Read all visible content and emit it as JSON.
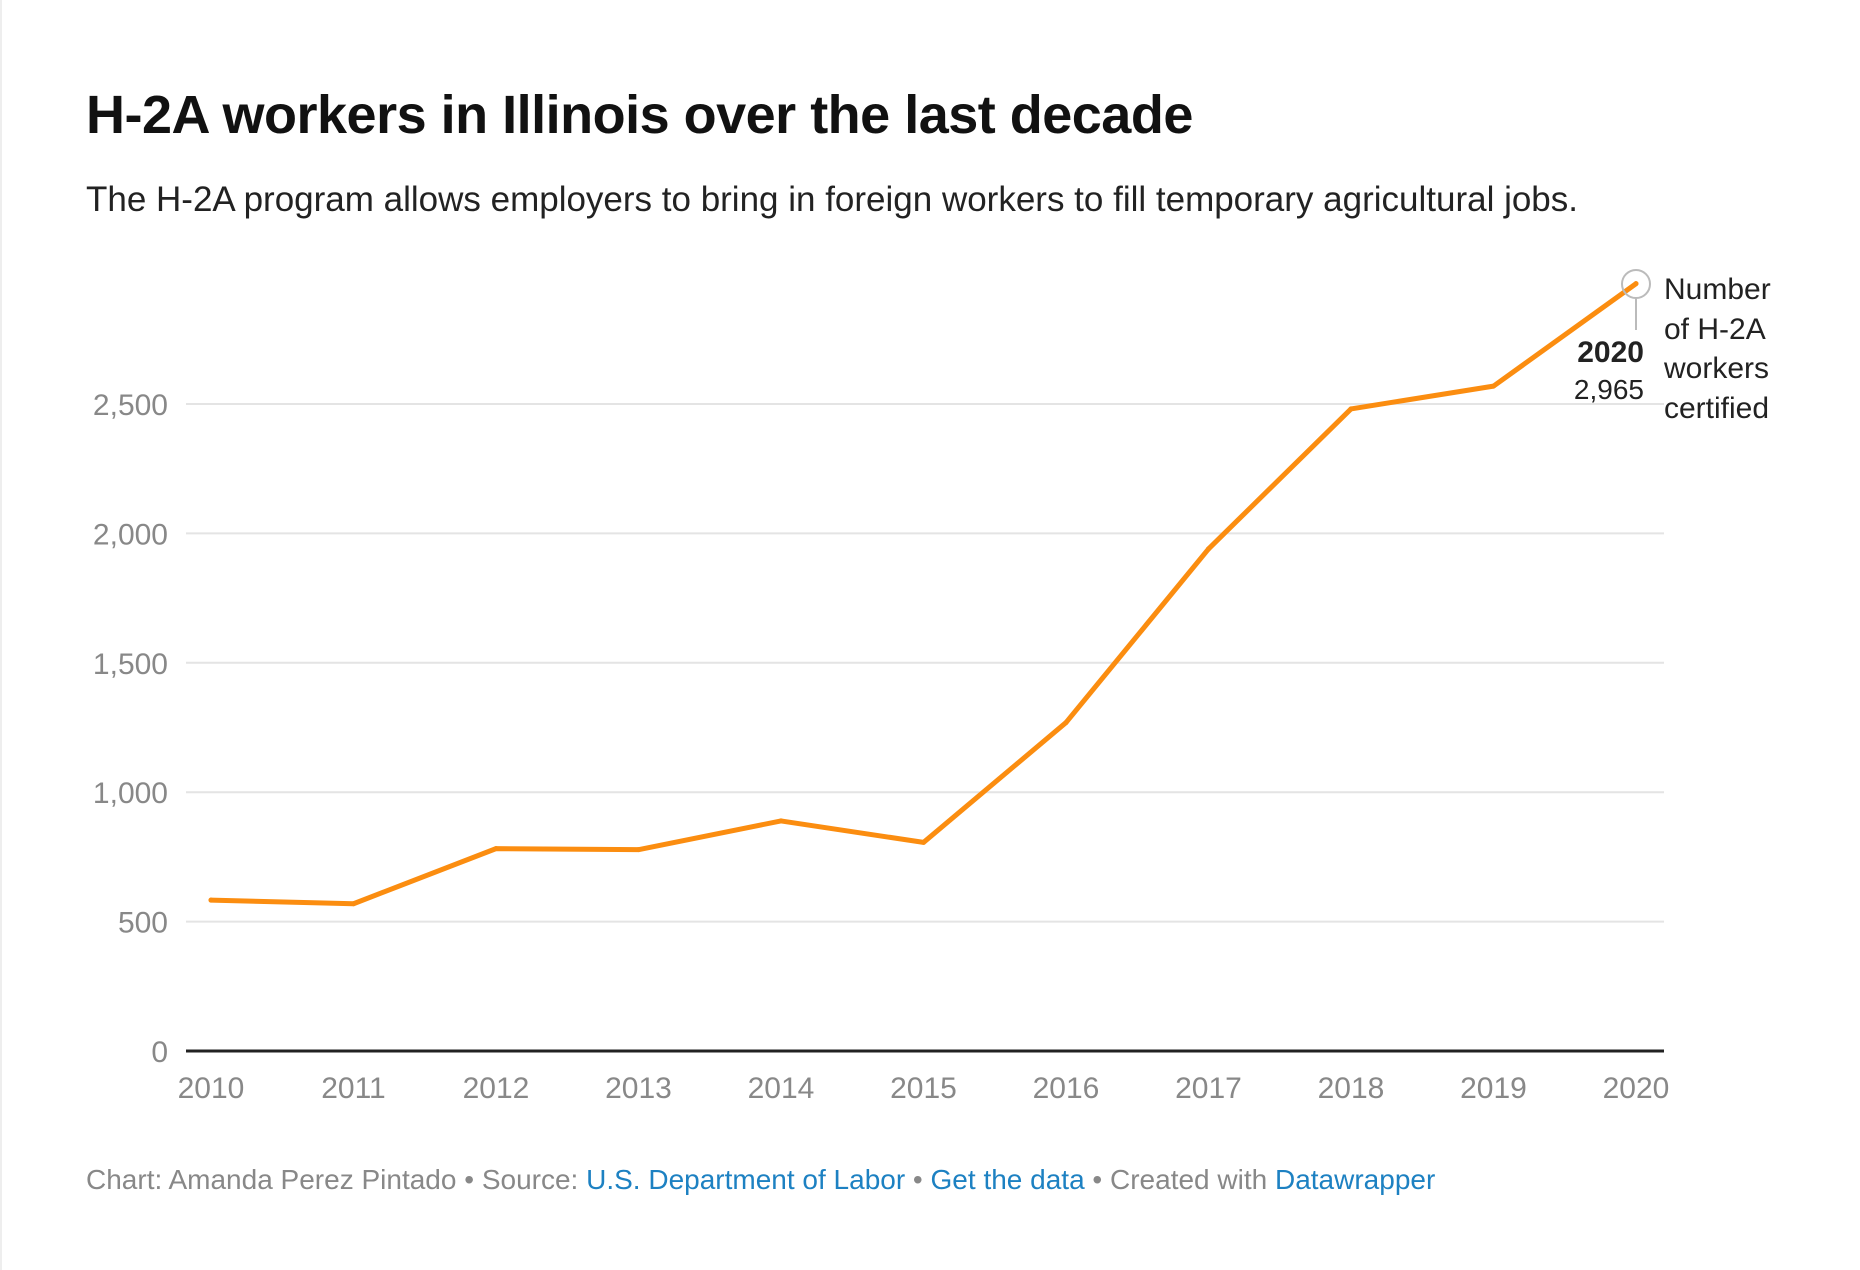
{
  "title": "H-2A workers in Illinois over the last decade",
  "subtitle": "The H-2A program allows employers to bring in foreign workers to fill temporary agricultural jobs.",
  "chart_data": {
    "type": "line",
    "x": [
      2010,
      2011,
      2012,
      2013,
      2014,
      2015,
      2016,
      2017,
      2018,
      2019,
      2020
    ],
    "series": [
      {
        "name": "Number of H-2A workers certified",
        "values": [
          583,
          569,
          782,
          778,
          889,
          806,
          1269,
          1940,
          2481,
          2569,
          2965
        ],
        "color": "#fb8d10"
      }
    ],
    "ylim": [
      0,
      3000
    ],
    "yticks": [
      0,
      500,
      1000,
      1500,
      2000,
      2500
    ],
    "ytick_labels": [
      "0",
      "500",
      "1,000",
      "1,500",
      "2,000",
      "2,500"
    ],
    "xtick_labels": [
      "2010",
      "2011",
      "2012",
      "2013",
      "2014",
      "2015",
      "2016",
      "2017",
      "2018",
      "2019",
      "2020"
    ],
    "grid": true,
    "annotation": {
      "year": "2020",
      "value": "2,965",
      "label_lines": [
        "Number",
        "of H-2A",
        "workers",
        "certified"
      ]
    }
  },
  "footer": {
    "chart_by": "Chart: Amanda Perez Pintado",
    "sep": " • ",
    "source_prefix": "Source: ",
    "source_link": "U.S. Department of Labor",
    "get_data": "Get the data",
    "created_prefix": "Created with ",
    "created_link": "Datawrapper"
  }
}
